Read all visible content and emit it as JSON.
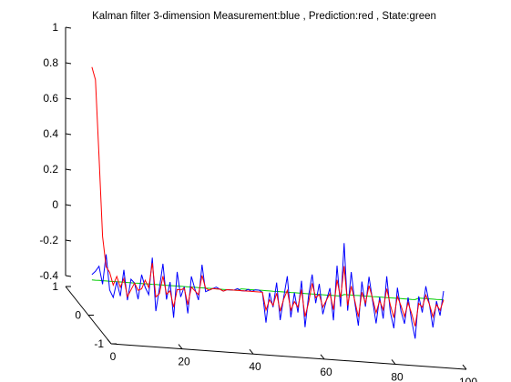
{
  "chart_data": {
    "type": "line",
    "title": "Kalman filter 3-dimension Measurement:blue , Prediction:red , State:green",
    "projection": "3d",
    "grid": false,
    "legend": "none",
    "xlim": [
      0,
      100
    ],
    "ylim": [
      -1,
      1
    ],
    "zlim": [
      -0.4,
      1
    ],
    "x_ticks": [
      "0",
      "20",
      "40",
      "60",
      "80",
      "100"
    ],
    "y_ticks": [
      "-1",
      "0",
      "1"
    ],
    "z_ticks": [
      "-0.4",
      "-0.2",
      "0",
      "0.2",
      "0.4",
      "0.6",
      "0.8",
      "1"
    ],
    "x": [
      1,
      2,
      3,
      4,
      5,
      6,
      7,
      8,
      9,
      10,
      11,
      12,
      13,
      14,
      15,
      16,
      17,
      18,
      19,
      20,
      21,
      22,
      23,
      24,
      25,
      26,
      27,
      28,
      29,
      30,
      31,
      32,
      33,
      34,
      35,
      36,
      37,
      38,
      39,
      40,
      41,
      42,
      43,
      44,
      45,
      46,
      47,
      48,
      49,
      50,
      51,
      52,
      53,
      54,
      55,
      56,
      57,
      58,
      59,
      60,
      61,
      62,
      63,
      64,
      65,
      66,
      67,
      68,
      69,
      70,
      71,
      72,
      73,
      74,
      75,
      76,
      77,
      78,
      79,
      80,
      81,
      82,
      83,
      84,
      85,
      86,
      87,
      88,
      89,
      90,
      91,
      92,
      93,
      94,
      95,
      96,
      97,
      98,
      99,
      100
    ],
    "series": [
      {
        "color": "#0000ff",
        "values": [
          -0.17,
          -0.15,
          -0.12,
          -0.22,
          -0.05,
          -0.25,
          -0.29,
          -0.2,
          -0.28,
          -0.13,
          -0.3,
          -0.18,
          -0.2,
          -0.29,
          -0.15,
          -0.22,
          -0.26,
          -0.05,
          -0.35,
          -0.22,
          -0.08,
          -0.28,
          -0.18,
          -0.38,
          -0.12,
          -0.26,
          -0.2,
          -0.35,
          -0.14,
          -0.21,
          -0.27,
          -0.07,
          -0.22,
          -0.21,
          -0.2,
          -0.19,
          -0.2,
          -0.21,
          -0.2,
          -0.2,
          -0.2,
          -0.19,
          -0.2,
          -0.2,
          -0.19,
          -0.2,
          -0.19,
          -0.19,
          -0.2,
          -0.37,
          -0.2,
          -0.28,
          -0.14,
          -0.35,
          -0.22,
          -0.1,
          -0.33,
          -0.19,
          -0.3,
          -0.12,
          -0.38,
          -0.2,
          -0.08,
          -0.24,
          -0.13,
          -0.3,
          -0.22,
          -0.15,
          -0.33,
          -0.02,
          -0.25,
          0.11,
          -0.27,
          -0.05,
          -0.22,
          -0.35,
          -0.1,
          -0.24,
          -0.07,
          -0.2,
          -0.33,
          -0.18,
          -0.3,
          -0.06,
          -0.26,
          -0.35,
          -0.12,
          -0.25,
          -0.32,
          -0.17,
          -0.3,
          -0.4,
          -0.16,
          -0.25,
          -0.1,
          -0.2,
          -0.33,
          -0.18,
          -0.26,
          -0.12
        ],
        "name": "Measurement"
      },
      {
        "color": "#ff0000",
        "values": [
          1,
          0.93,
          0.5,
          0.05,
          -0.12,
          -0.15,
          -0.22,
          -0.17,
          -0.23,
          -0.18,
          -0.28,
          -0.24,
          -0.2,
          -0.24,
          -0.23,
          -0.18,
          -0.22,
          -0.08,
          -0.27,
          -0.25,
          -0.15,
          -0.25,
          -0.23,
          -0.32,
          -0.22,
          -0.22,
          -0.21,
          -0.3,
          -0.2,
          -0.22,
          -0.24,
          -0.13,
          -0.2,
          -0.21,
          -0.2,
          -0.2,
          -0.2,
          -0.21,
          -0.2,
          -0.2,
          -0.2,
          -0.2,
          -0.2,
          -0.2,
          -0.2,
          -0.2,
          -0.2,
          -0.2,
          -0.2,
          -0.3,
          -0.24,
          -0.27,
          -0.2,
          -0.3,
          -0.23,
          -0.18,
          -0.29,
          -0.24,
          -0.27,
          -0.17,
          -0.32,
          -0.24,
          -0.13,
          -0.21,
          -0.19,
          -0.26,
          -0.22,
          -0.18,
          -0.27,
          -0.1,
          -0.2,
          -0.02,
          -0.24,
          -0.13,
          -0.21,
          -0.3,
          -0.16,
          -0.22,
          -0.12,
          -0.19,
          -0.27,
          -0.2,
          -0.25,
          -0.13,
          -0.22,
          -0.29,
          -0.17,
          -0.22,
          -0.28,
          -0.2,
          -0.26,
          -0.33,
          -0.2,
          -0.22,
          -0.15,
          -0.2,
          -0.27,
          -0.2,
          -0.23,
          -0.17
        ],
        "name": "Prediction"
      },
      {
        "color": "#00cc00",
        "values": [
          -0.2,
          -0.2,
          -0.2,
          -0.2,
          -0.2,
          -0.2,
          -0.2,
          -0.2,
          -0.2,
          -0.2,
          -0.2,
          -0.2,
          -0.2,
          -0.2,
          -0.2,
          -0.2,
          -0.2,
          -0.2,
          -0.2,
          -0.2,
          -0.2,
          -0.2,
          -0.2,
          -0.2,
          -0.2,
          -0.2,
          -0.2,
          -0.2,
          -0.2,
          -0.2,
          -0.2,
          -0.2,
          -0.2,
          -0.2,
          -0.2,
          -0.2,
          -0.2,
          -0.2,
          -0.2,
          -0.2,
          -0.2,
          -0.2,
          -0.19,
          -0.19,
          -0.19,
          -0.19,
          -0.19,
          -0.19,
          -0.19,
          -0.19,
          -0.19,
          -0.19,
          -0.19,
          -0.19,
          -0.19,
          -0.19,
          -0.19,
          -0.19,
          -0.19,
          -0.19,
          -0.19,
          -0.19,
          -0.19,
          -0.19,
          -0.19,
          -0.19,
          -0.19,
          -0.19,
          -0.19,
          -0.19,
          -0.19,
          -0.18,
          -0.18,
          -0.18,
          -0.18,
          -0.18,
          -0.18,
          -0.18,
          -0.18,
          -0.18,
          -0.18,
          -0.18,
          -0.18,
          -0.18,
          -0.18,
          -0.18,
          -0.18,
          -0.18,
          -0.18,
          -0.18,
          -0.18,
          -0.18,
          -0.17,
          -0.17,
          -0.17,
          -0.17,
          -0.17,
          -0.17,
          -0.17,
          -0.17
        ],
        "name": "State"
      }
    ]
  }
}
